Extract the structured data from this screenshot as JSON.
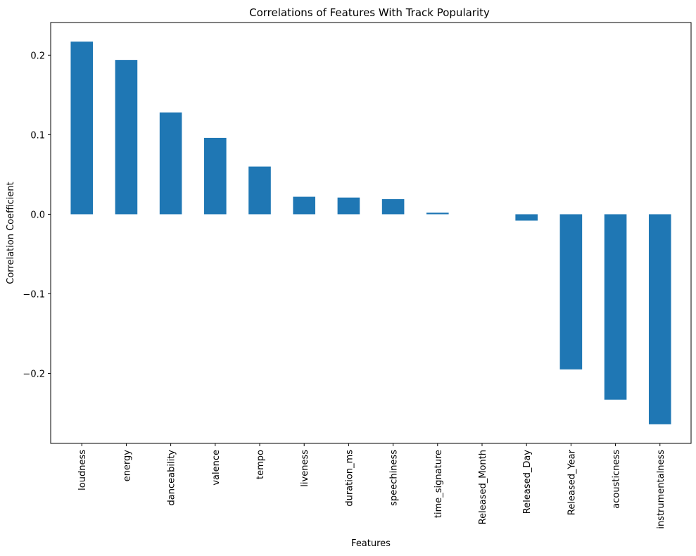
{
  "chart_data": {
    "type": "bar",
    "title": "Correlations of Features With Track Popularity",
    "xlabel": "Features",
    "ylabel": "Correlation Coefficient",
    "categories": [
      "loudness",
      "energy",
      "danceability",
      "valence",
      "tempo",
      "liveness",
      "duration_ms",
      "speechiness",
      "time_signature",
      "Released_Month",
      "Released_Day",
      "Released_Year",
      "acousticness",
      "instrumentalness"
    ],
    "values": [
      0.217,
      0.194,
      0.128,
      0.096,
      0.06,
      0.022,
      0.021,
      0.019,
      0.002,
      0.0,
      -0.008,
      -0.195,
      -0.233,
      -0.264
    ],
    "ylim": [
      -0.288,
      0.241
    ],
    "yticks": [
      -0.2,
      -0.1,
      0.0,
      0.1,
      0.2
    ],
    "ytick_labels": [
      "−0.2",
      "−0.1",
      "0.0",
      "0.1",
      "0.2"
    ],
    "bar_color": "#1f77b4",
    "grid": false,
    "legend": false
  }
}
